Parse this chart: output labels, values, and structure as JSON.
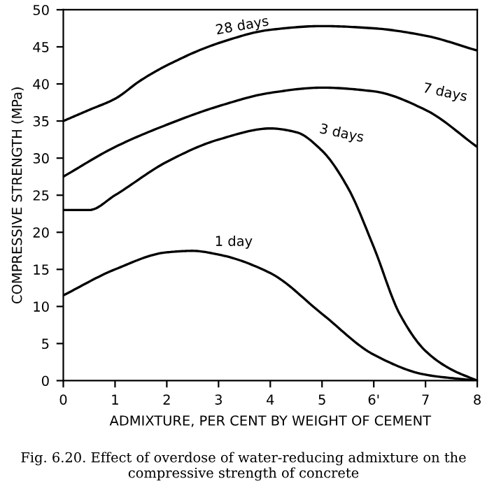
{
  "chart_data": {
    "type": "line",
    "xlabel": "ADMIXTURE, PER CENT BY WEIGHT OF CEMENT",
    "ylabel": "COMPRESSIVE STRENGTH (MPa)",
    "xlim": [
      0,
      8
    ],
    "ylim": [
      0,
      50
    ],
    "xticks": [
      0,
      1,
      2,
      3,
      4,
      5,
      {
        "value": 6,
        "label": "6'"
      },
      7,
      8
    ],
    "yticks": [
      0,
      5,
      10,
      15,
      20,
      25,
      30,
      35,
      40,
      45,
      50
    ],
    "series": [
      {
        "color": "#000000",
        "x": [
          0,
          0.5,
          1,
          1.5,
          2,
          3,
          4,
          5,
          6,
          7,
          8
        ],
        "values": [
          35,
          36.5,
          38,
          40.5,
          42.5,
          45.5,
          47.3,
          47.8,
          47.5,
          46.5,
          44.5
        ]
      },
      {
        "color": "#000000",
        "x": [
          0,
          1,
          2,
          3,
          4,
          5,
          6,
          7,
          8
        ],
        "values": [
          27.5,
          31.5,
          34.5,
          37,
          38.8,
          39.5,
          39,
          36.5,
          31.5
        ]
      },
      {
        "color": "#000000",
        "x": [
          0,
          0.5,
          1,
          2,
          3,
          4,
          4.5,
          5,
          5.5,
          6,
          6.5,
          7,
          7.5,
          8
        ],
        "values": [
          23,
          23,
          25,
          29.5,
          32.5,
          34,
          33.5,
          31,
          26,
          18,
          9,
          4,
          1.5,
          0
        ]
      },
      {
        "color": "#000000",
        "x": [
          0,
          1,
          2,
          2.5,
          3,
          4,
          5,
          6,
          7,
          8
        ],
        "values": [
          11.5,
          15,
          17.3,
          17.5,
          17,
          14.5,
          9,
          3.5,
          0.8,
          0
        ]
      }
    ],
    "annotations": [
      {
        "text": "28 days",
        "x": 3,
        "y": 45.5
      },
      {
        "text": "7 days",
        "x": 7,
        "y": 36.5
      },
      {
        "text": "3 days",
        "x": 5,
        "y": 31
      },
      {
        "text": "1 day",
        "x": 3,
        "y": 17
      },
      "Fig. 6.20. Effect of overdose of water-reducing admixture on the compressive strength of concrete"
    ],
    "grid": false,
    "legend": false,
    "marker": "none",
    "line_style": "solid"
  }
}
